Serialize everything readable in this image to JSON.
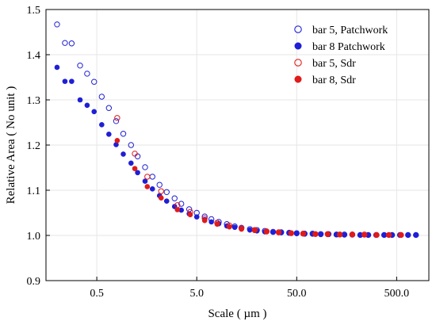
{
  "chart_data": {
    "type": "scatter",
    "title": "",
    "xlabel": "Scale ( µm )",
    "ylabel": "Relative Area ( No unit )",
    "xscale": "log",
    "xlim": [
      0.155,
      1050
    ],
    "ylim": [
      0.9,
      1.5
    ],
    "grid": true,
    "legend_position": "top-right",
    "x_ticks": [
      0.5,
      5.0,
      50.0,
      500.0
    ],
    "x_tick_labels": [
      "0.5",
      "5.0",
      "50.0",
      "500.0"
    ],
    "y_ticks": [
      0.9,
      1.0,
      1.1,
      1.2,
      1.3,
      1.4,
      1.5
    ],
    "y_tick_labels": [
      "0.9",
      "1.0",
      "1.1",
      "1.2",
      "1.3",
      "1.4",
      "1.5"
    ],
    "series": [
      {
        "name": "bar 5, Patchwork",
        "marker": "open-circle",
        "color": "#1f1fd6",
        "points": [
          [
            0.2,
            1.467
          ],
          [
            0.24,
            1.426
          ],
          [
            0.28,
            1.425
          ],
          [
            0.34,
            1.376
          ],
          [
            0.4,
            1.358
          ],
          [
            0.47,
            1.34
          ],
          [
            0.56,
            1.307
          ],
          [
            0.66,
            1.282
          ],
          [
            0.78,
            1.253
          ],
          [
            0.92,
            1.225
          ],
          [
            1.1,
            1.2
          ],
          [
            1.28,
            1.175
          ],
          [
            1.52,
            1.151
          ],
          [
            1.8,
            1.13
          ],
          [
            2.12,
            1.112
          ],
          [
            2.5,
            1.096
          ],
          [
            3.0,
            1.082
          ],
          [
            3.5,
            1.07
          ],
          [
            4.2,
            1.058
          ],
          [
            5.0,
            1.05
          ],
          [
            6.0,
            1.042
          ],
          [
            7.0,
            1.036
          ],
          [
            8.3,
            1.03
          ],
          [
            10,
            1.025
          ],
          [
            12,
            1.02
          ],
          [
            14,
            1.017
          ],
          [
            17,
            1.014
          ],
          [
            20,
            1.012
          ],
          [
            24,
            1.01
          ],
          [
            29,
            1.008
          ],
          [
            35,
            1.007
          ],
          [
            42,
            1.006
          ],
          [
            50,
            1.005
          ],
          [
            60,
            1.004
          ],
          [
            72,
            1.004
          ],
          [
            87,
            1.003
          ],
          [
            104,
            1.003
          ],
          [
            125,
            1.002
          ],
          [
            150,
            1.002
          ],
          [
            180,
            1.002
          ],
          [
            216,
            1.001
          ],
          [
            260,
            1.001
          ],
          [
            312,
            1.001
          ],
          [
            375,
            1.001
          ],
          [
            450,
            1.001
          ],
          [
            540,
            1.001
          ],
          [
            650,
            1.001
          ],
          [
            780,
            1.001
          ]
        ]
      },
      {
        "name": "bar 8 Patchwork",
        "marker": "filled-circle",
        "color": "#1f1fd6",
        "points": [
          [
            0.2,
            1.372
          ],
          [
            0.24,
            1.341
          ],
          [
            0.28,
            1.341
          ],
          [
            0.34,
            1.3
          ],
          [
            0.4,
            1.288
          ],
          [
            0.47,
            1.274
          ],
          [
            0.56,
            1.245
          ],
          [
            0.66,
            1.224
          ],
          [
            0.78,
            1.201
          ],
          [
            0.92,
            1.18
          ],
          [
            1.1,
            1.16
          ],
          [
            1.28,
            1.139
          ],
          [
            1.52,
            1.12
          ],
          [
            1.8,
            1.103
          ],
          [
            2.12,
            1.088
          ],
          [
            2.5,
            1.076
          ],
          [
            3.0,
            1.064
          ],
          [
            3.5,
            1.056
          ],
          [
            4.2,
            1.048
          ],
          [
            5.0,
            1.041
          ],
          [
            6.0,
            1.035
          ],
          [
            7.0,
            1.03
          ],
          [
            8.3,
            1.026
          ],
          [
            10,
            1.021
          ],
          [
            12,
            1.018
          ],
          [
            14,
            1.015
          ],
          [
            17,
            1.012
          ],
          [
            20,
            1.01
          ],
          [
            24,
            1.008
          ],
          [
            29,
            1.007
          ],
          [
            35,
            1.006
          ],
          [
            42,
            1.005
          ],
          [
            50,
            1.004
          ],
          [
            60,
            1.003
          ],
          [
            72,
            1.003
          ],
          [
            87,
            1.002
          ],
          [
            104,
            1.002
          ],
          [
            125,
            1.002
          ],
          [
            150,
            1.001
          ],
          [
            180,
            1.001
          ],
          [
            216,
            1.001
          ],
          [
            260,
            1.001
          ],
          [
            312,
            1.001
          ],
          [
            375,
            1.001
          ],
          [
            450,
            1.001
          ],
          [
            540,
            1.001
          ],
          [
            650,
            1.001
          ],
          [
            780,
            1.001
          ]
        ]
      },
      {
        "name": "bar 5, Sdr",
        "marker": "open-circle",
        "color": "#e01b1b",
        "points": [
          [
            0.8,
            1.26
          ],
          [
            1.2,
            1.181
          ],
          [
            1.6,
            1.13
          ],
          [
            2.2,
            1.098
          ],
          [
            3.2,
            1.067
          ],
          [
            4.3,
            1.052
          ],
          [
            6.0,
            1.038
          ],
          [
            8.0,
            1.028
          ],
          [
            10.6,
            1.022
          ],
          [
            14,
            1.016
          ],
          [
            19,
            1.012
          ],
          [
            25,
            1.009
          ],
          [
            33,
            1.007
          ],
          [
            44,
            1.005
          ],
          [
            58,
            1.004
          ],
          [
            77,
            1.003
          ],
          [
            102,
            1.003
          ],
          [
            135,
            1.002
          ],
          [
            180,
            1.002
          ],
          [
            238,
            1.002
          ],
          [
            315,
            1.001
          ],
          [
            418,
            1.001
          ],
          [
            553,
            1.001
          ]
        ]
      },
      {
        "name": "bar 8, Sdr",
        "marker": "filled-circle",
        "color": "#e01b1b",
        "points": [
          [
            0.8,
            1.21
          ],
          [
            1.2,
            1.148
          ],
          [
            1.6,
            1.108
          ],
          [
            2.2,
            1.083
          ],
          [
            3.2,
            1.057
          ],
          [
            4.3,
            1.046
          ],
          [
            6.0,
            1.033
          ],
          [
            8.0,
            1.025
          ],
          [
            10.6,
            1.019
          ],
          [
            14,
            1.014
          ],
          [
            19,
            1.011
          ],
          [
            25,
            1.008
          ],
          [
            33,
            1.006
          ],
          [
            44,
            1.005
          ],
          [
            58,
            1.004
          ],
          [
            77,
            1.003
          ],
          [
            102,
            1.002
          ],
          [
            135,
            1.002
          ],
          [
            180,
            1.002
          ],
          [
            238,
            1.001
          ],
          [
            315,
            1.001
          ],
          [
            418,
            1.001
          ],
          [
            553,
            1.001
          ]
        ]
      }
    ]
  }
}
